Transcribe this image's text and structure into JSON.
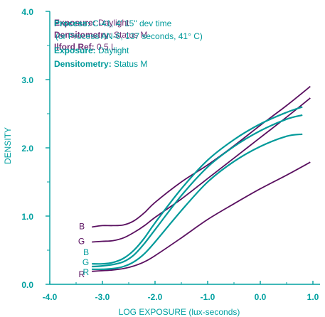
{
  "chart_data": {
    "type": "line",
    "xlabel": "LOG EXPOSURE (lux-seconds)",
    "ylabel": "DENSITY",
    "xlim": [
      -4.0,
      1.0
    ],
    "ylim": [
      0.0,
      4.0
    ],
    "x_ticks": [
      "-4.0",
      "-3.0",
      "-2.0",
      "-1.0",
      "0.0",
      "1.0"
    ],
    "y_ticks": [
      "0.0",
      "1.0",
      "2.0",
      "3.0",
      "4.0"
    ],
    "grid": false,
    "colors": {
      "axis": "#00a0a0",
      "teal": "#009a9a",
      "purple": "#5a1060"
    },
    "annotations": {
      "overlay_back": [
        {
          "label": "Exposure:",
          "text": "Daylight"
        },
        {
          "label": "Densitometry:",
          "text": "Status M"
        },
        {
          "label": "Ilford Ref:",
          "text": "0.5 L"
        }
      ],
      "front": [
        {
          "label": "Process:",
          "text": "C-41, 4' 15\" dev time"
        },
        {
          "label": "",
          "text": "(or Process AN-6, 137 seconds, 41° C)"
        },
        {
          "label": "Exposure:",
          "text": "Daylight"
        },
        {
          "label": "Densitometry:",
          "text": "Status M"
        }
      ]
    },
    "series": [
      {
        "name": "B",
        "group": "upper",
        "color": "purple",
        "x": [
          -3.2,
          -3.0,
          -2.8,
          -2.6,
          -2.4,
          -2.2,
          -2.0,
          -1.5,
          -1.0,
          -0.5,
          0.0,
          0.5,
          0.95
        ],
        "y": [
          0.84,
          0.86,
          0.86,
          0.87,
          0.93,
          1.05,
          1.2,
          1.5,
          1.75,
          2.03,
          2.33,
          2.62,
          2.9
        ]
      },
      {
        "name": "G",
        "group": "upper",
        "color": "purple",
        "x": [
          -3.2,
          -3.0,
          -2.8,
          -2.6,
          -2.4,
          -2.2,
          -2.0,
          -1.5,
          -1.0,
          -0.5,
          0.0,
          0.5,
          0.95
        ],
        "y": [
          0.62,
          0.63,
          0.64,
          0.68,
          0.76,
          0.86,
          0.98,
          1.25,
          1.55,
          1.85,
          2.15,
          2.45,
          2.73
        ]
      },
      {
        "name": "R",
        "group": "upper",
        "color": "purple",
        "x": [
          -3.2,
          -3.0,
          -2.8,
          -2.6,
          -2.4,
          -2.2,
          -2.0,
          -1.5,
          -1.0,
          -0.5,
          0.0,
          0.5,
          0.95
        ],
        "y": [
          0.19,
          0.2,
          0.21,
          0.23,
          0.27,
          0.33,
          0.42,
          0.68,
          0.95,
          1.18,
          1.4,
          1.6,
          1.79
        ]
      },
      {
        "name": "B",
        "group": "lower",
        "color": "teal",
        "x": [
          -3.2,
          -3.0,
          -2.8,
          -2.6,
          -2.4,
          -2.2,
          -2.0,
          -1.5,
          -1.0,
          -0.5,
          0.0,
          0.5,
          0.8
        ],
        "y": [
          0.3,
          0.3,
          0.32,
          0.38,
          0.5,
          0.68,
          0.9,
          1.4,
          1.82,
          2.12,
          2.35,
          2.52,
          2.6
        ]
      },
      {
        "name": "G",
        "group": "lower",
        "color": "teal",
        "x": [
          -3.2,
          -3.0,
          -2.8,
          -2.6,
          -2.4,
          -2.2,
          -2.0,
          -1.5,
          -1.0,
          -0.5,
          0.0,
          0.5,
          0.8
        ],
        "y": [
          0.26,
          0.27,
          0.29,
          0.33,
          0.43,
          0.6,
          0.8,
          1.3,
          1.72,
          2.02,
          2.25,
          2.42,
          2.48
        ]
      },
      {
        "name": "R",
        "group": "lower",
        "color": "teal",
        "x": [
          -3.2,
          -3.0,
          -2.8,
          -2.6,
          -2.4,
          -2.2,
          -2.0,
          -1.5,
          -1.0,
          -0.5,
          0.0,
          0.5,
          0.8
        ],
        "y": [
          0.22,
          0.22,
          0.23,
          0.26,
          0.33,
          0.45,
          0.62,
          1.08,
          1.5,
          1.8,
          2.02,
          2.17,
          2.2
        ]
      }
    ]
  }
}
